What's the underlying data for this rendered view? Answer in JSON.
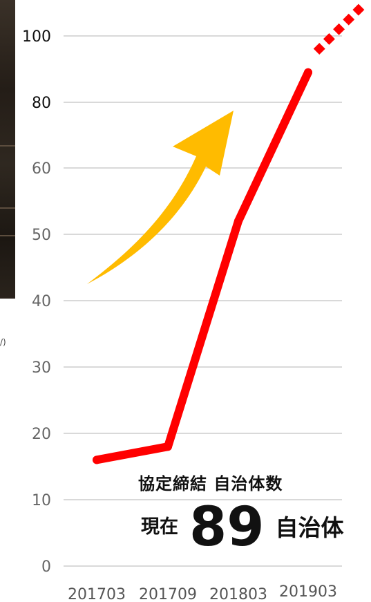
{
  "chart_data": {
    "type": "line",
    "title": "",
    "xlabel": "",
    "ylabel": "",
    "categories": [
      "201703",
      "201709",
      "201803",
      "201903"
    ],
    "series": [
      {
        "values": [
          16,
          18,
          52,
          89
        ],
        "color": "#ff0000"
      }
    ],
    "projection": {
      "from": 89,
      "to": 110,
      "style": "dotted",
      "color": "#ff0000"
    },
    "y_ticks": [
      0,
      10,
      20,
      30,
      40,
      50,
      60,
      80,
      100
    ],
    "grid": true,
    "highlight_arrow": {
      "color": "#ffbb00",
      "direction": "up-right"
    }
  },
  "photo": {
    "cropped_caption": "/)"
  },
  "annotation": {
    "title": "協定締結 自治体数",
    "prefix": "現在",
    "count": "89",
    "suffix": "自治体"
  }
}
